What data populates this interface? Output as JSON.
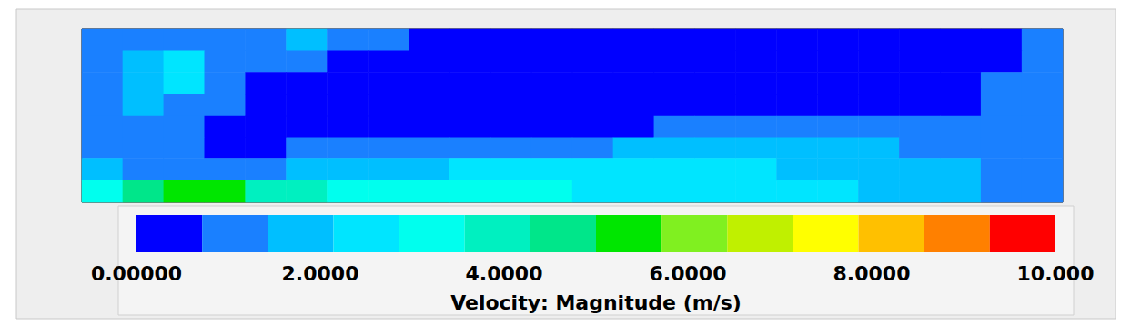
{
  "chart_data": {
    "type": "heatmap",
    "tick_labels": false,
    "cells": [
      [
        1.0,
        1.1,
        1.0,
        0.9,
        1.2,
        1.8,
        1.0,
        0.8,
        0.4,
        0.3,
        0.3,
        0.3,
        0.3,
        0.3,
        0.3,
        0.3,
        0.3,
        0.3,
        0.3,
        0.3,
        0.3,
        0.3,
        0.4,
        1.2
      ],
      [
        1.0,
        1.6,
        2.2,
        1.2,
        0.9,
        0.9,
        0.7,
        0.5,
        0.4,
        0.3,
        0.3,
        0.3,
        0.3,
        0.3,
        0.3,
        0.3,
        0.3,
        0.3,
        0.3,
        0.3,
        0.3,
        0.3,
        0.6,
        1.3
      ],
      [
        1.1,
        1.8,
        2.2,
        1.3,
        0.6,
        0.4,
        0.3,
        0.3,
        0.3,
        0.3,
        0.3,
        0.3,
        0.3,
        0.3,
        0.3,
        0.3,
        0.3,
        0.3,
        0.3,
        0.3,
        0.3,
        0.4,
        0.9,
        1.1
      ],
      [
        1.2,
        1.6,
        1.4,
        1.0,
        0.5,
        0.3,
        0.3,
        0.3,
        0.3,
        0.3,
        0.3,
        0.3,
        0.3,
        0.3,
        0.3,
        0.3,
        0.5,
        0.5,
        0.5,
        0.5,
        0.5,
        0.6,
        0.9,
        1.0
      ],
      [
        1.0,
        1.2,
        1.1,
        0.6,
        0.4,
        0.4,
        0.5,
        0.5,
        0.5,
        0.5,
        0.6,
        0.6,
        0.7,
        0.7,
        0.8,
        0.8,
        0.9,
        0.9,
        1.0,
        1.0,
        1.0,
        1.0,
        1.0,
        0.9
      ],
      [
        1.3,
        1.1,
        0.9,
        0.5,
        0.6,
        0.8,
        0.9,
        1.0,
        1.1,
        1.2,
        1.3,
        1.3,
        1.4,
        1.5,
        1.5,
        1.6,
        1.6,
        1.6,
        1.6,
        1.5,
        1.4,
        1.3,
        1.1,
        0.8
      ],
      [
        1.6,
        1.4,
        1.2,
        1.0,
        1.3,
        1.6,
        1.8,
        2.0,
        2.1,
        2.2,
        2.3,
        2.3,
        2.3,
        2.4,
        2.3,
        2.2,
        2.2,
        2.1,
        2.0,
        1.9,
        1.7,
        1.5,
        1.2,
        0.9
      ],
      [
        3.0,
        4.5,
        5.5,
        5.0,
        4.2,
        3.8,
        3.5,
        3.3,
        3.2,
        3.1,
        3.0,
        2.9,
        2.8,
        2.7,
        2.6,
        2.5,
        2.4,
        2.3,
        2.2,
        2.0,
        1.8,
        1.6,
        1.2,
        0.8
      ]
    ],
    "colorbar": {
      "title": "Velocity: Magnitude (m/s)",
      "range": [
        0,
        10
      ],
      "ticks": [
        {
          "value": 0,
          "label": "0.00000"
        },
        {
          "value": 2,
          "label": "2.0000"
        },
        {
          "value": 4,
          "label": "4.0000"
        },
        {
          "value": 6,
          "label": "6.0000"
        },
        {
          "value": 8,
          "label": "8.0000"
        },
        {
          "value": 10,
          "label": "10.000"
        }
      ],
      "colors": [
        "#0000ff",
        "#1a80ff",
        "#00bfff",
        "#00e5ff",
        "#00ffee",
        "#00f0c0",
        "#00e68a",
        "#00e600",
        "#80f020",
        "#c0f000",
        "#ffff00",
        "#ffc000",
        "#ff8000",
        "#ff0000"
      ]
    }
  }
}
